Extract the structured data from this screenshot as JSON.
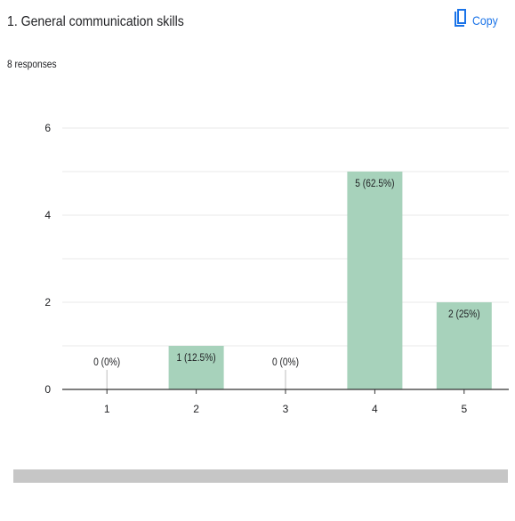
{
  "question": {
    "title": "1. General communication skills",
    "responses": "8 responses"
  },
  "copy_button": {
    "label": "Copy",
    "icon": "copy-icon",
    "color": "#1a73e8"
  },
  "colors": {
    "bar": "#a7d2bb",
    "grid": "#e8e8e8",
    "axis": "#333333",
    "text": "#202124"
  },
  "chart_data": {
    "type": "bar",
    "categories": [
      "1",
      "2",
      "3",
      "4",
      "5"
    ],
    "values": [
      0,
      1,
      0,
      5,
      2
    ],
    "data_labels": [
      "0 (0%)",
      "1 (12.5%)",
      "0 (0%)",
      "5 (62.5%)",
      "2 (25%)"
    ],
    "yticks": [
      0,
      2,
      4,
      6
    ],
    "ylim": [
      0,
      6
    ],
    "grid": true,
    "xlabel": "",
    "ylabel": ""
  }
}
